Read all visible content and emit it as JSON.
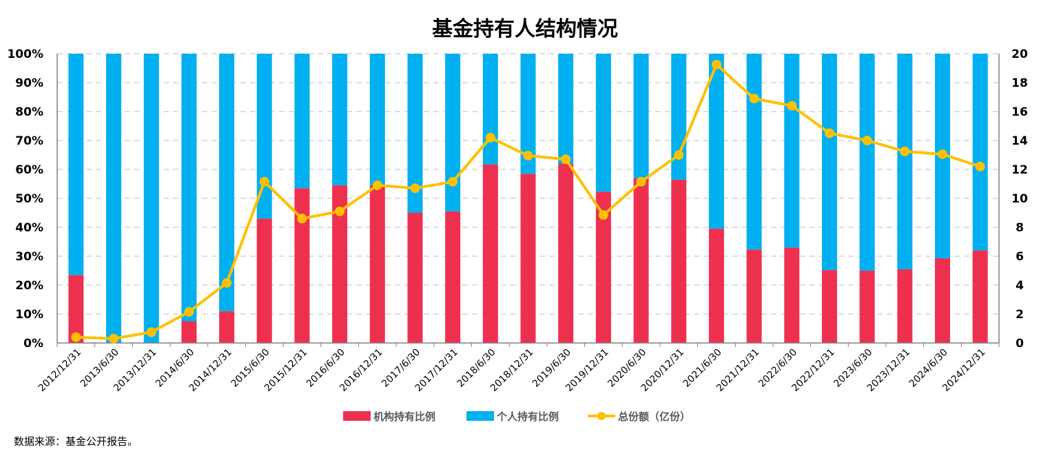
{
  "chart_data": {
    "type": "bar",
    "title": "基金持有人结构情况",
    "categories": [
      "2012/12/31",
      "2013/6/30",
      "2013/12/31",
      "2014/6/30",
      "2014/12/31",
      "2015/6/30",
      "2015/12/31",
      "2016/6/30",
      "2016/12/31",
      "2017/6/30",
      "2017/12/31",
      "2018/6/30",
      "2018/12/31",
      "2019/6/30",
      "2019/12/31",
      "2020/6/30",
      "2020/12/31",
      "2021/6/30",
      "2021/12/31",
      "2022/6/30",
      "2022/12/31",
      "2023/6/30",
      "2023/12/31",
      "2024/6/30",
      "2024/12/31"
    ],
    "series": [
      {
        "name": "机构持有比例",
        "type": "stacked-bar",
        "axis": "left",
        "color": "#EE304F",
        "values": [
          23.5,
          0,
          0,
          7.5,
          11,
          43,
          53.5,
          54.5,
          54.5,
          45,
          45.5,
          61.7,
          58.5,
          62,
          52.3,
          57,
          56.5,
          39.5,
          32.3,
          33,
          25.2,
          25,
          25.5,
          29.3,
          32
        ]
      },
      {
        "name": "个人持有比例",
        "type": "stacked-bar",
        "axis": "left",
        "color": "#00B0F0",
        "values": [
          76.5,
          100,
          100,
          92.5,
          89,
          57,
          46.5,
          45.5,
          45.5,
          55,
          54.5,
          38.3,
          41.5,
          38,
          47.7,
          43,
          43.5,
          60.5,
          67.7,
          67,
          74.8,
          75,
          74.5,
          70.7,
          68
        ]
      },
      {
        "name": "总份额（亿份）",
        "type": "line",
        "axis": "right",
        "color": "#FFC000",
        "values": [
          0.4,
          0.3,
          0.75,
          2.15,
          4.15,
          11.15,
          8.6,
          9.1,
          10.9,
          10.7,
          11.15,
          14.2,
          12.95,
          12.7,
          8.85,
          11.15,
          13,
          19.25,
          16.9,
          16.4,
          14.5,
          14,
          13.25,
          13.05,
          12.2
        ]
      }
    ],
    "y_left": {
      "ticks": [
        "0%",
        "10%",
        "20%",
        "30%",
        "40%",
        "50%",
        "60%",
        "70%",
        "80%",
        "90%",
        "100%"
      ],
      "ylim": [
        0,
        100
      ]
    },
    "y_right": {
      "ticks": [
        "0",
        "2",
        "4",
        "6",
        "8",
        "10",
        "12",
        "14",
        "16",
        "18",
        "20"
      ],
      "ylim": [
        0,
        20
      ]
    },
    "grid": "horizontal-dashed",
    "legend_position": "bottom"
  },
  "source_note": "数据来源：基金公开报告。"
}
